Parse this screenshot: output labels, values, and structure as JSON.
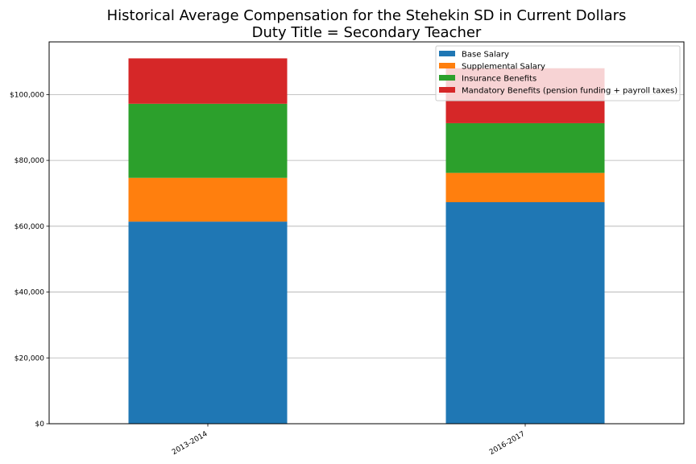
{
  "chart_data": {
    "type": "bar",
    "stacked": true,
    "title": "Historical Average Compensation for the Stehekin SD in Current Dollars",
    "subtitle": "Duty Title = Secondary Teacher",
    "xlabel": "",
    "ylabel": "",
    "categories": [
      "2013-2014",
      "2016-2017"
    ],
    "series": [
      {
        "name": "Base Salary",
        "color": "#1f77b4",
        "values": [
          61400,
          67300
        ]
      },
      {
        "name": "Supplemental Salary",
        "color": "#ff7f0e",
        "values": [
          13300,
          8900
        ]
      },
      {
        "name": "Insurance Benefits",
        "color": "#2ca02c",
        "values": [
          22500,
          15100
        ]
      },
      {
        "name": "Mandatory Benefits (pension funding + payroll taxes)",
        "color": "#d62728",
        "values": [
          13800,
          16700
        ]
      }
    ],
    "ylim": [
      0,
      116000
    ],
    "yticks": [
      0,
      20000,
      40000,
      60000,
      80000,
      100000
    ],
    "ytick_labels": [
      "$0",
      "$20,000",
      "$40,000",
      "$60,000",
      "$80,000",
      "$100,000"
    ],
    "grid": "horizontal",
    "legend": "top-right"
  }
}
